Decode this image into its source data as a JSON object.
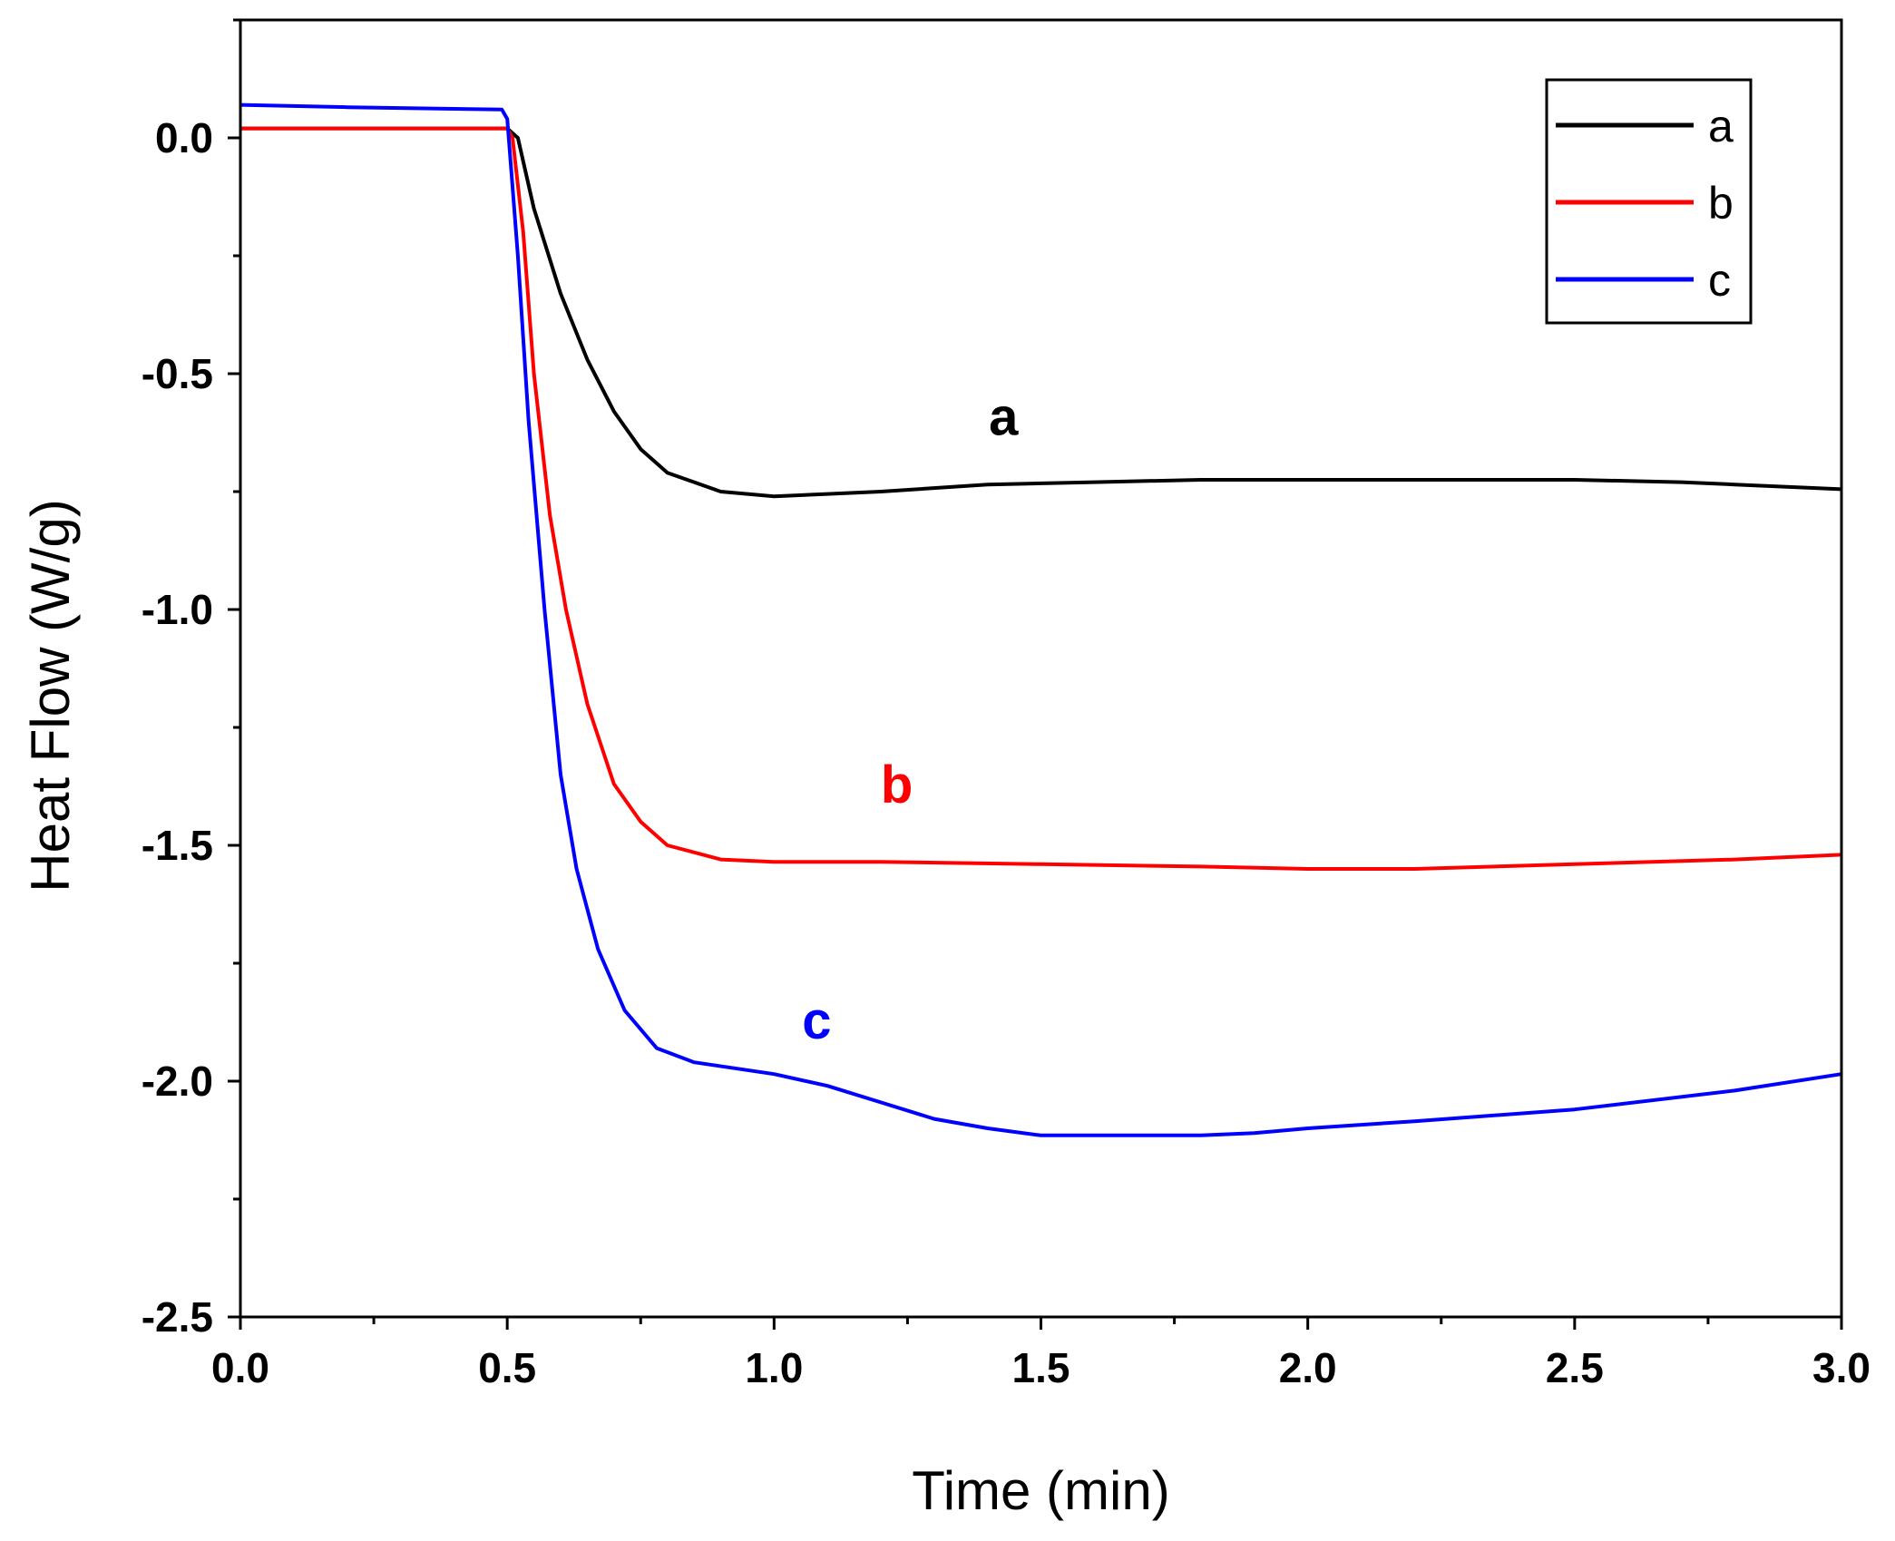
{
  "chart_data": {
    "type": "line",
    "title": "",
    "xlabel": "Time (min)",
    "ylabel": "Heat Flow (W/g)",
    "xlim": [
      0.0,
      3.0
    ],
    "ylim": [
      -2.5,
      0.25
    ],
    "x_ticks": [
      "0.0",
      "0.5",
      "1.0",
      "1.5",
      "2.0",
      "2.5",
      "3.0"
    ],
    "y_ticks": [
      "0.0",
      "-0.5",
      "-1.0",
      "-1.5",
      "-2.0",
      "-2.5"
    ],
    "grid": false,
    "legend_position": "top-right",
    "series": [
      {
        "name": "a",
        "color": "#000000",
        "points": [
          [
            0.0,
            0.02
          ],
          [
            0.5,
            0.02
          ],
          [
            0.52,
            0.0
          ],
          [
            0.55,
            -0.15
          ],
          [
            0.6,
            -0.33
          ],
          [
            0.65,
            -0.47
          ],
          [
            0.7,
            -0.58
          ],
          [
            0.75,
            -0.66
          ],
          [
            0.8,
            -0.71
          ],
          [
            0.9,
            -0.75
          ],
          [
            1.0,
            -0.76
          ],
          [
            1.1,
            -0.755
          ],
          [
            1.2,
            -0.75
          ],
          [
            1.4,
            -0.735
          ],
          [
            1.6,
            -0.73
          ],
          [
            1.8,
            -0.725
          ],
          [
            2.0,
            -0.725
          ],
          [
            2.2,
            -0.725
          ],
          [
            2.5,
            -0.725
          ],
          [
            2.7,
            -0.73
          ],
          [
            2.8,
            -0.735
          ],
          [
            3.0,
            -0.745
          ]
        ]
      },
      {
        "name": "b",
        "color": "#ff0000",
        "points": [
          [
            0.0,
            0.02
          ],
          [
            0.5,
            0.02
          ],
          [
            0.51,
            0.0
          ],
          [
            0.53,
            -0.2
          ],
          [
            0.55,
            -0.5
          ],
          [
            0.58,
            -0.8
          ],
          [
            0.61,
            -1.0
          ],
          [
            0.65,
            -1.2
          ],
          [
            0.7,
            -1.37
          ],
          [
            0.75,
            -1.45
          ],
          [
            0.8,
            -1.5
          ],
          [
            0.9,
            -1.53
          ],
          [
            1.0,
            -1.535
          ],
          [
            1.2,
            -1.535
          ],
          [
            1.5,
            -1.54
          ],
          [
            1.8,
            -1.545
          ],
          [
            2.0,
            -1.55
          ],
          [
            2.2,
            -1.55
          ],
          [
            2.5,
            -1.54
          ],
          [
            2.8,
            -1.53
          ],
          [
            3.0,
            -1.52
          ]
        ]
      },
      {
        "name": "c",
        "color": "#0000ff",
        "points": [
          [
            0.0,
            0.07
          ],
          [
            0.2,
            0.065
          ],
          [
            0.49,
            0.06
          ],
          [
            0.5,
            0.04
          ],
          [
            0.52,
            -0.25
          ],
          [
            0.54,
            -0.6
          ],
          [
            0.57,
            -1.0
          ],
          [
            0.6,
            -1.35
          ],
          [
            0.63,
            -1.55
          ],
          [
            0.67,
            -1.72
          ],
          [
            0.72,
            -1.85
          ],
          [
            0.78,
            -1.93
          ],
          [
            0.85,
            -1.96
          ],
          [
            1.0,
            -1.985
          ],
          [
            1.1,
            -2.01
          ],
          [
            1.2,
            -2.045
          ],
          [
            1.3,
            -2.08
          ],
          [
            1.4,
            -2.1
          ],
          [
            1.5,
            -2.115
          ],
          [
            1.6,
            -2.115
          ],
          [
            1.8,
            -2.115
          ],
          [
            1.9,
            -2.11
          ],
          [
            2.0,
            -2.1
          ],
          [
            2.2,
            -2.085
          ],
          [
            2.5,
            -2.06
          ],
          [
            2.8,
            -2.02
          ],
          [
            3.0,
            -1.985
          ]
        ]
      }
    ],
    "annotations": [
      {
        "text": "a",
        "series": "a",
        "x": 1.43,
        "y": -0.63
      },
      {
        "text": "b",
        "series": "b",
        "x": 1.23,
        "y": -1.41
      },
      {
        "text": "c",
        "series": "c",
        "x": 1.08,
        "y": -1.91
      }
    ]
  }
}
